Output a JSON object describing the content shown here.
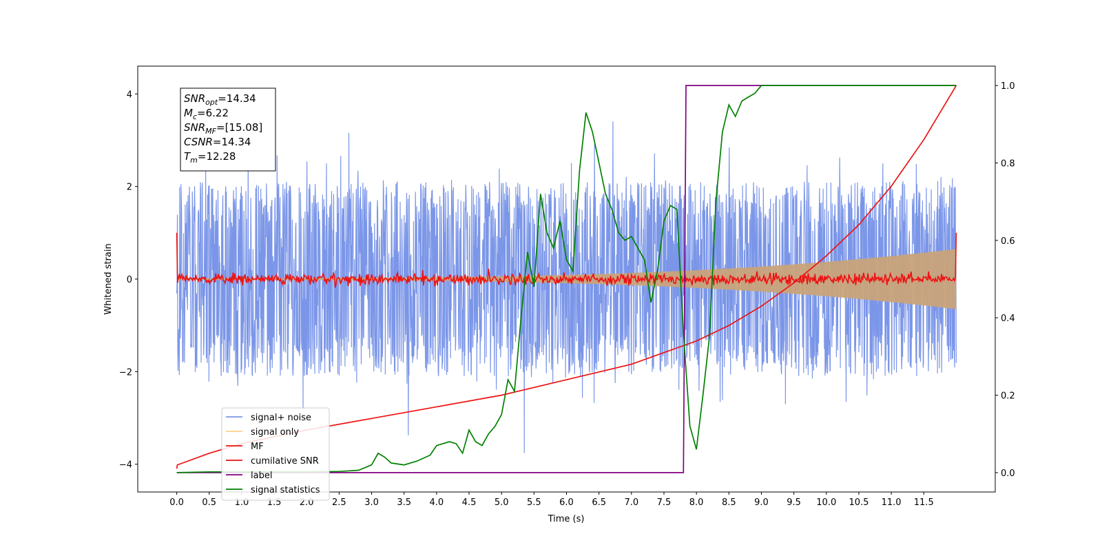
{
  "chart_data": {
    "type": "line",
    "xlabel": "Time (s)",
    "ylabel": "Whitened strain",
    "xlim": [
      -0.6,
      12.6
    ],
    "ylim": [
      -4.6,
      4.6
    ],
    "ylim_right": [
      -0.05,
      1.05
    ],
    "x_ticks": [
      "0.0",
      "0.5",
      "1.0",
      "1.5",
      "2.0",
      "2.5",
      "3.0",
      "3.5",
      "4.0",
      "4.5",
      "5.0",
      "5.5",
      "6.0",
      "6.5",
      "7.0",
      "7.5",
      "8.0",
      "8.5",
      "9.0",
      "9.5",
      "10.0",
      "10.5",
      "11.0",
      "11.5"
    ],
    "y_ticks": [
      "−4",
      "−2",
      "0",
      "2",
      "4"
    ],
    "y_ticks_right": [
      "0.0",
      "0.2",
      "0.4",
      "0.6",
      "0.8",
      "1.0"
    ],
    "grid": false,
    "legend_position": "lower-left",
    "stats_box": {
      "lines": [
        {
          "name": "SNR",
          "sub": "opt",
          "value": "=14.34"
        },
        {
          "name": "M",
          "sub": "c",
          "value": "=6.22"
        },
        {
          "name": "SNR",
          "sub": "MF",
          "value": "=[15.08]"
        },
        {
          "name": "CSNR",
          "sub": "",
          "value": "=14.34"
        },
        {
          "name": "T",
          "sub": "m",
          "value": "=12.28"
        }
      ]
    },
    "series": [
      {
        "name": "signal+ noise",
        "axis": "left",
        "color": "#7b96e8",
        "kind": "noise",
        "x_range": [
          0,
          12
        ],
        "spread": 1.0
      },
      {
        "name": "signal only",
        "axis": "left",
        "color": "#c9a37a",
        "kind": "chirp_envelope",
        "x_range": [
          0,
          12
        ],
        "amplitude_start": 0.02,
        "amplitude_end": 0.65
      },
      {
        "name": "MF",
        "axis": "left",
        "color": "#ee1111",
        "kind": "mf",
        "x_range": [
          0,
          12
        ],
        "spike_start": 1.0,
        "spike_end": 1.0,
        "noise": 0.06
      },
      {
        "name": "cumilative SNR",
        "axis": "right",
        "color": "#ee1111",
        "kind": "line",
        "x": [
          0.0,
          0.01,
          0.5,
          1.0,
          2.0,
          3.0,
          4.0,
          5.0,
          6.0,
          7.0,
          7.5,
          8.0,
          8.5,
          9.0,
          9.5,
          10.0,
          10.5,
          11.0,
          11.5,
          12.0
        ],
        "y": [
          0.01,
          0.02,
          0.05,
          0.075,
          0.11,
          0.14,
          0.17,
          0.2,
          0.24,
          0.28,
          0.31,
          0.34,
          0.38,
          0.43,
          0.49,
          0.56,
          0.64,
          0.74,
          0.86,
          1.0
        ]
      },
      {
        "name": "label",
        "axis": "right",
        "color": "#800080",
        "kind": "line",
        "x": [
          0.0,
          7.8,
          7.84,
          12.0
        ],
        "y": [
          0.0,
          0.0,
          1.0,
          1.0
        ]
      },
      {
        "name": "signal statistics",
        "axis": "right",
        "color": "#008000",
        "kind": "line",
        "x": [
          0.0,
          0.5,
          1.0,
          1.5,
          2.0,
          2.5,
          2.8,
          3.0,
          3.1,
          3.2,
          3.3,
          3.5,
          3.7,
          3.9,
          4.0,
          4.2,
          4.3,
          4.4,
          4.5,
          4.6,
          4.7,
          4.8,
          4.9,
          5.0,
          5.1,
          5.2,
          5.3,
          5.4,
          5.5,
          5.6,
          5.7,
          5.8,
          5.9,
          6.0,
          6.1,
          6.2,
          6.3,
          6.4,
          6.5,
          6.6,
          6.7,
          6.8,
          6.9,
          7.0,
          7.1,
          7.2,
          7.3,
          7.4,
          7.5,
          7.6,
          7.7,
          7.8,
          7.9,
          8.0,
          8.1,
          8.2,
          8.3,
          8.4,
          8.5,
          8.6,
          8.7,
          8.8,
          8.9,
          9.0,
          9.1,
          9.2,
          9.3,
          9.4,
          9.5,
          9.6,
          9.7,
          9.8,
          9.9,
          10.0,
          10.1,
          10.2,
          10.5,
          11.0,
          11.5,
          12.0
        ],
        "y": [
          0.0,
          0.002,
          0.002,
          0.002,
          0.002,
          0.003,
          0.006,
          0.02,
          0.05,
          0.04,
          0.025,
          0.02,
          0.03,
          0.045,
          0.07,
          0.08,
          0.075,
          0.05,
          0.11,
          0.08,
          0.07,
          0.1,
          0.12,
          0.15,
          0.24,
          0.21,
          0.4,
          0.57,
          0.48,
          0.72,
          0.62,
          0.58,
          0.65,
          0.55,
          0.52,
          0.78,
          0.93,
          0.88,
          0.8,
          0.72,
          0.68,
          0.62,
          0.6,
          0.61,
          0.58,
          0.55,
          0.44,
          0.52,
          0.65,
          0.69,
          0.68,
          0.36,
          0.12,
          0.06,
          0.2,
          0.35,
          0.7,
          0.88,
          0.95,
          0.92,
          0.96,
          0.97,
          0.98,
          1.0,
          1.0,
          1.0,
          1.0,
          1.0,
          1.0,
          1.0,
          1.0,
          1.0,
          1.0,
          1.0,
          1.0,
          1.0,
          1.0,
          1.0,
          1.0,
          1.0
        ]
      }
    ]
  }
}
